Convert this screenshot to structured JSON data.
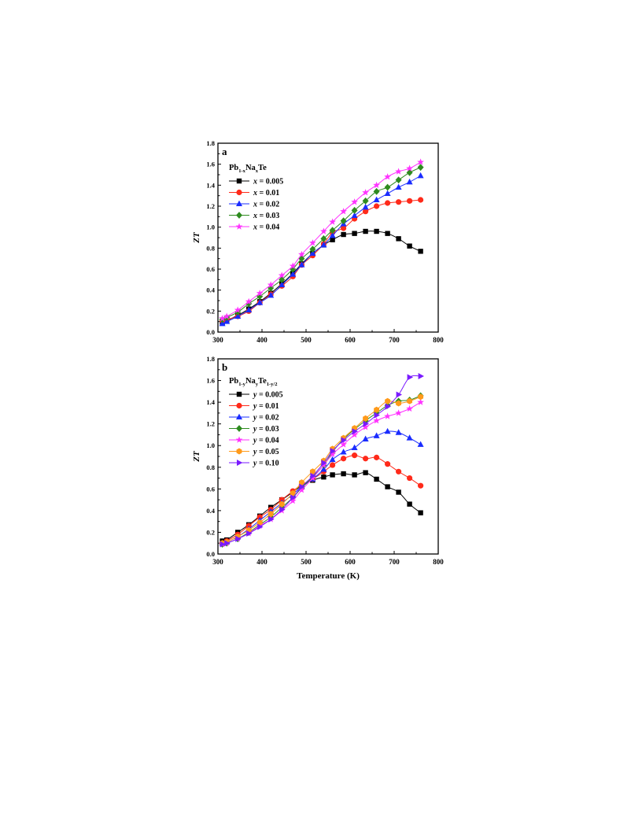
{
  "chart_data": [
    {
      "type": "line",
      "panel_label": "a",
      "legend_title": {
        "main": "Pb",
        "sub1": "1-x",
        "mid": "Na",
        "sub2": "x",
        "tail": "Te"
      },
      "xlabel": "",
      "ylabel": "ZT",
      "xlim": [
        300,
        800
      ],
      "ylim": [
        0.0,
        1.8
      ],
      "xticks": [
        "300",
        "400",
        "500",
        "600",
        "700",
        "800"
      ],
      "yticks": [
        "0.0",
        "0.2",
        "0.4",
        "0.6",
        "0.8",
        "1.0",
        "1.2",
        "1.4",
        "1.6",
        "1.8"
      ],
      "legend_position": "top-left",
      "grid": false,
      "x": [
        310,
        320,
        345,
        370,
        395,
        420,
        445,
        470,
        490,
        515,
        540,
        560,
        585,
        610,
        635,
        660,
        685,
        710,
        735,
        760
      ],
      "series": [
        {
          "name": "x = 0.005",
          "var": "x",
          "val": "0.005",
          "color": "#000000",
          "marker": "square",
          "values": [
            0.09,
            0.11,
            0.16,
            0.22,
            0.29,
            0.37,
            0.46,
            0.56,
            0.65,
            0.75,
            0.83,
            0.88,
            0.93,
            0.94,
            0.96,
            0.96,
            0.94,
            0.89,
            0.82,
            0.77
          ]
        },
        {
          "name": "x = 0.01",
          "var": "x",
          "val": "0.01",
          "color": "#ff2a1a",
          "marker": "circle",
          "values": [
            0.11,
            0.12,
            0.15,
            0.2,
            0.28,
            0.36,
            0.44,
            0.53,
            0.64,
            0.73,
            0.84,
            0.95,
            0.99,
            1.08,
            1.15,
            1.2,
            1.23,
            1.24,
            1.25,
            1.26
          ]
        },
        {
          "name": "x = 0.02",
          "var": "x",
          "val": "0.02",
          "color": "#1a2cff",
          "marker": "triangle",
          "values": [
            0.08,
            0.1,
            0.15,
            0.21,
            0.28,
            0.35,
            0.45,
            0.55,
            0.64,
            0.75,
            0.83,
            0.92,
            1.03,
            1.11,
            1.19,
            1.26,
            1.32,
            1.38,
            1.43,
            1.49
          ]
        },
        {
          "name": "x = 0.03",
          "var": "x",
          "val": "0.03",
          "color": "#2e8b1f",
          "marker": "diamond",
          "values": [
            0.12,
            0.14,
            0.19,
            0.27,
            0.34,
            0.42,
            0.5,
            0.6,
            0.7,
            0.79,
            0.89,
            0.97,
            1.06,
            1.16,
            1.25,
            1.34,
            1.38,
            1.45,
            1.52,
            1.57
          ]
        },
        {
          "name": "x = 0.04",
          "var": "x",
          "val": "0.04",
          "color": "#ff33ff",
          "marker": "star",
          "values": [
            0.13,
            0.15,
            0.21,
            0.29,
            0.37,
            0.45,
            0.54,
            0.63,
            0.74,
            0.85,
            0.96,
            1.05,
            1.15,
            1.24,
            1.33,
            1.4,
            1.48,
            1.53,
            1.56,
            1.62
          ]
        }
      ]
    },
    {
      "type": "line",
      "panel_label": "b",
      "legend_title": {
        "main": "Pb",
        "sub1": "1-y",
        "mid": "Na",
        "sub2": "y",
        "tail": "Te",
        "sub3": "1-y/2"
      },
      "xlabel": "Temperature (K)",
      "ylabel": "ZT",
      "xlim": [
        300,
        800
      ],
      "ylim": [
        0.0,
        1.8
      ],
      "xticks": [
        "300",
        "400",
        "500",
        "600",
        "700",
        "800"
      ],
      "yticks": [
        "0.0",
        "0.2",
        "0.4",
        "0.6",
        "0.8",
        "1.0",
        "1.2",
        "1.4",
        "1.6",
        "1.8"
      ],
      "legend_position": "top-left",
      "grid": false,
      "x": [
        310,
        320,
        345,
        370,
        395,
        420,
        445,
        470,
        490,
        515,
        540,
        560,
        585,
        610,
        635,
        660,
        685,
        710,
        735,
        760
      ],
      "series": [
        {
          "name": "y = 0.005",
          "var": "y",
          "val": "0.005",
          "color": "#000000",
          "marker": "square",
          "values": [
            0.12,
            0.13,
            0.2,
            0.27,
            0.35,
            0.43,
            0.5,
            0.57,
            0.63,
            0.68,
            0.71,
            0.73,
            0.74,
            0.73,
            0.75,
            0.69,
            0.62,
            0.57,
            0.46,
            0.38
          ]
        },
        {
          "name": "y = 0.01",
          "var": "y",
          "val": "0.01",
          "color": "#ff2a1a",
          "marker": "circle",
          "values": [
            0.1,
            0.12,
            0.18,
            0.26,
            0.34,
            0.41,
            0.5,
            0.58,
            0.64,
            0.69,
            0.76,
            0.82,
            0.88,
            0.91,
            0.88,
            0.89,
            0.83,
            0.76,
            0.7,
            0.63
          ]
        },
        {
          "name": "y = 0.02",
          "var": "y",
          "val": "0.02",
          "color": "#1a2cff",
          "marker": "triangle",
          "values": [
            0.1,
            0.11,
            0.16,
            0.23,
            0.31,
            0.39,
            0.47,
            0.55,
            0.62,
            0.69,
            0.78,
            0.87,
            0.94,
            0.98,
            1.06,
            1.09,
            1.13,
            1.12,
            1.07,
            1.01
          ]
        },
        {
          "name": "y = 0.03",
          "var": "y",
          "val": "0.03",
          "color": "#2e8b1f",
          "marker": "diamond",
          "values": [
            0.09,
            0.1,
            0.14,
            0.2,
            0.27,
            0.34,
            0.43,
            0.52,
            0.61,
            0.71,
            0.82,
            0.94,
            1.06,
            1.15,
            1.23,
            1.3,
            1.37,
            1.41,
            1.42,
            1.46
          ]
        },
        {
          "name": "y = 0.04",
          "var": "y",
          "val": "0.04",
          "color": "#ff33ff",
          "marker": "star",
          "values": [
            0.09,
            0.1,
            0.14,
            0.19,
            0.26,
            0.32,
            0.4,
            0.49,
            0.59,
            0.7,
            0.82,
            0.92,
            1.01,
            1.1,
            1.17,
            1.23,
            1.27,
            1.3,
            1.34,
            1.4
          ]
        },
        {
          "name": "y = 0.05",
          "var": "y",
          "val": "0.05",
          "color": "#ff9a1a",
          "marker": "hexagon",
          "values": [
            0.1,
            0.11,
            0.16,
            0.22,
            0.29,
            0.37,
            0.46,
            0.56,
            0.66,
            0.76,
            0.86,
            0.97,
            1.07,
            1.16,
            1.25,
            1.33,
            1.41,
            1.39,
            1.41,
            1.45
          ]
        },
        {
          "name": "y = 0.10",
          "var": "y",
          "val": "0.10",
          "color": "#7a1aff",
          "marker": "triangle-right",
          "values": [
            0.09,
            0.1,
            0.14,
            0.19,
            0.25,
            0.32,
            0.41,
            0.52,
            0.62,
            0.72,
            0.84,
            0.95,
            1.05,
            1.13,
            1.2,
            1.28,
            1.36,
            1.47,
            1.63,
            1.64
          ]
        }
      ]
    }
  ]
}
